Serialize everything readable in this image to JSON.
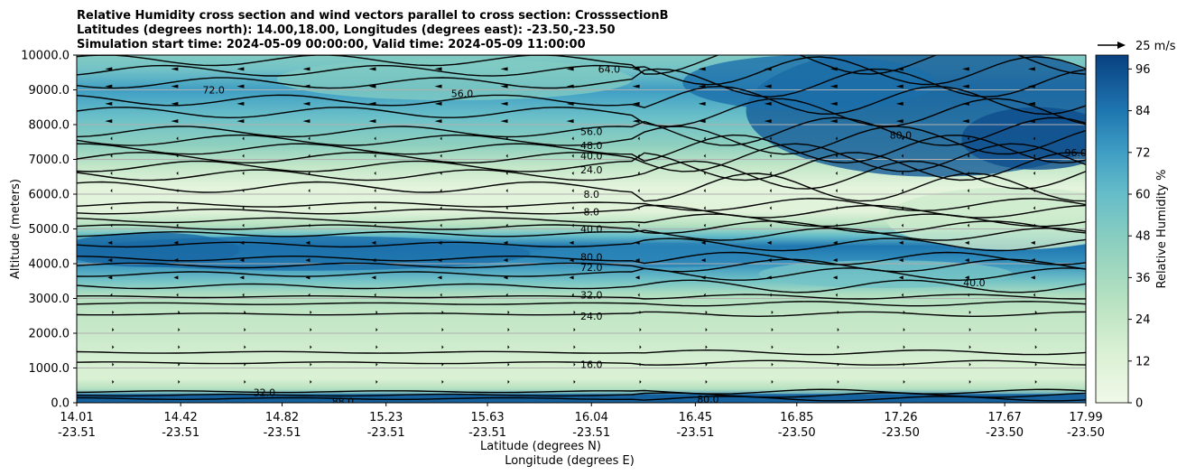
{
  "chart_data": {
    "type": "heatmap",
    "title_lines": [
      "Relative Humidity cross section and wind vectors parallel to cross section: CrosssectionB",
      "Latitudes (degrees north): 14.00,18.00, Longitudes (degrees east): -23.50,-23.50",
      "Simulation start time: 2024-05-09 00:00:00, Valid time: 2024-05-09 11:00:00"
    ],
    "ylabel": "Altitude (meters)",
    "xlabel_lat": "Latitude (degrees N)",
    "xlabel_lon": "Longitude (degrees E)",
    "ylim": [
      0,
      10000
    ],
    "yticks": [
      "0.0",
      "1000.0",
      "2000.0",
      "3000.0",
      "4000.0",
      "5000.0",
      "6000.0",
      "7000.0",
      "8000.0",
      "9000.0",
      "10000.0"
    ],
    "yticks_values": [
      0,
      1000,
      2000,
      3000,
      4000,
      5000,
      6000,
      7000,
      8000,
      9000,
      10000
    ],
    "xlim": [
      14.01,
      17.99
    ],
    "xticks": [
      {
        "lat": "14.01",
        "lon": "-23.51",
        "v": 14.01
      },
      {
        "lat": "14.42",
        "lon": "-23.51",
        "v": 14.42
      },
      {
        "lat": "14.82",
        "lon": "-23.51",
        "v": 14.82
      },
      {
        "lat": "15.23",
        "lon": "-23.51",
        "v": 15.23
      },
      {
        "lat": "15.63",
        "lon": "-23.51",
        "v": 15.63
      },
      {
        "lat": "16.04",
        "lon": "-23.51",
        "v": 16.04
      },
      {
        "lat": "16.45",
        "lon": "-23.51",
        "v": 16.45
      },
      {
        "lat": "16.85",
        "lon": "-23.50",
        "v": 16.85
      },
      {
        "lat": "17.26",
        "lon": "-23.50",
        "v": 17.26
      },
      {
        "lat": "17.67",
        "lon": "-23.50",
        "v": 17.67
      },
      {
        "lat": "17.99",
        "lon": "-23.50",
        "v": 17.99
      }
    ],
    "colorbar": {
      "label": "Relative Humidity %",
      "range": [
        0,
        100
      ],
      "ticks": [
        "0",
        "12",
        "24",
        "36",
        "48",
        "60",
        "72",
        "84",
        "96"
      ],
      "tick_values": [
        0,
        12,
        24,
        36,
        48,
        60,
        72,
        84,
        96
      ],
      "colormap_low": "#f0f9e8",
      "colormap_mid": "#7bccc4",
      "colormap_high": "#084081"
    },
    "quiver_key": "25 m/s",
    "rh_profile": [
      {
        "alt": 0,
        "rh": 88
      },
      {
        "alt": 150,
        "rh": 80
      },
      {
        "alt": 400,
        "rh": 30
      },
      {
        "alt": 700,
        "rh": 14
      },
      {
        "alt": 1200,
        "rh": 16
      },
      {
        "alt": 2000,
        "rh": 22
      },
      {
        "alt": 2600,
        "rh": 25
      },
      {
        "alt": 3100,
        "rh": 32
      },
      {
        "alt": 3500,
        "rh": 55
      },
      {
        "alt": 4000,
        "rh": 75
      },
      {
        "alt": 4500,
        "rh": 84
      },
      {
        "alt": 4800,
        "rh": 60
      },
      {
        "alt": 5100,
        "rh": 30
      },
      {
        "alt": 5500,
        "rh": 10
      },
      {
        "alt": 6200,
        "rh": 8
      },
      {
        "alt": 6800,
        "rh": 24
      },
      {
        "alt": 7400,
        "rh": 45
      },
      {
        "alt": 8200,
        "rh": 58
      },
      {
        "alt": 9000,
        "rh": 72
      },
      {
        "alt": 9600,
        "rh": 55
      },
      {
        "alt": 10000,
        "rh": 50
      }
    ],
    "contour_labels": [
      {
        "text": "8.0",
        "lat": 16.04,
        "alt": 6000
      },
      {
        "text": "8.0",
        "lat": 16.04,
        "alt": 5500
      },
      {
        "text": "16.0",
        "lat": 16.04,
        "alt": 1100
      },
      {
        "text": "24.0",
        "lat": 16.04,
        "alt": 2500
      },
      {
        "text": "24.0",
        "lat": 16.04,
        "alt": 6700
      },
      {
        "text": "32.0",
        "lat": 16.04,
        "alt": 3100
      },
      {
        "text": "40.0",
        "lat": 16.04,
        "alt": 5000
      },
      {
        "text": "40.0",
        "lat": 16.04,
        "alt": 7100
      },
      {
        "text": "48.0",
        "lat": 16.04,
        "alt": 7400
      },
      {
        "text": "56.0",
        "lat": 16.04,
        "alt": 7800
      },
      {
        "text": "64.0",
        "lat": 16.11,
        "alt": 9600
      },
      {
        "text": "72.0",
        "lat": 16.04,
        "alt": 3900
      },
      {
        "text": "80.0",
        "lat": 16.04,
        "alt": 4200
      },
      {
        "text": "80.0",
        "lat": 17.26,
        "alt": 7700
      },
      {
        "text": "88.0",
        "lat": 15.06,
        "alt": 40
      },
      {
        "text": "40.0",
        "lat": 17.55,
        "alt": 3450
      },
      {
        "text": "72.0",
        "lat": 14.55,
        "alt": 9000
      },
      {
        "text": "56.0",
        "lat": 15.53,
        "alt": 8900
      },
      {
        "text": "32.0",
        "lat": 14.75,
        "alt": 300
      },
      {
        "text": "96.0",
        "lat": 17.95,
        "alt": 7200
      },
      {
        "text": "80.0",
        "lat": 16.5,
        "alt": 100
      }
    ]
  }
}
